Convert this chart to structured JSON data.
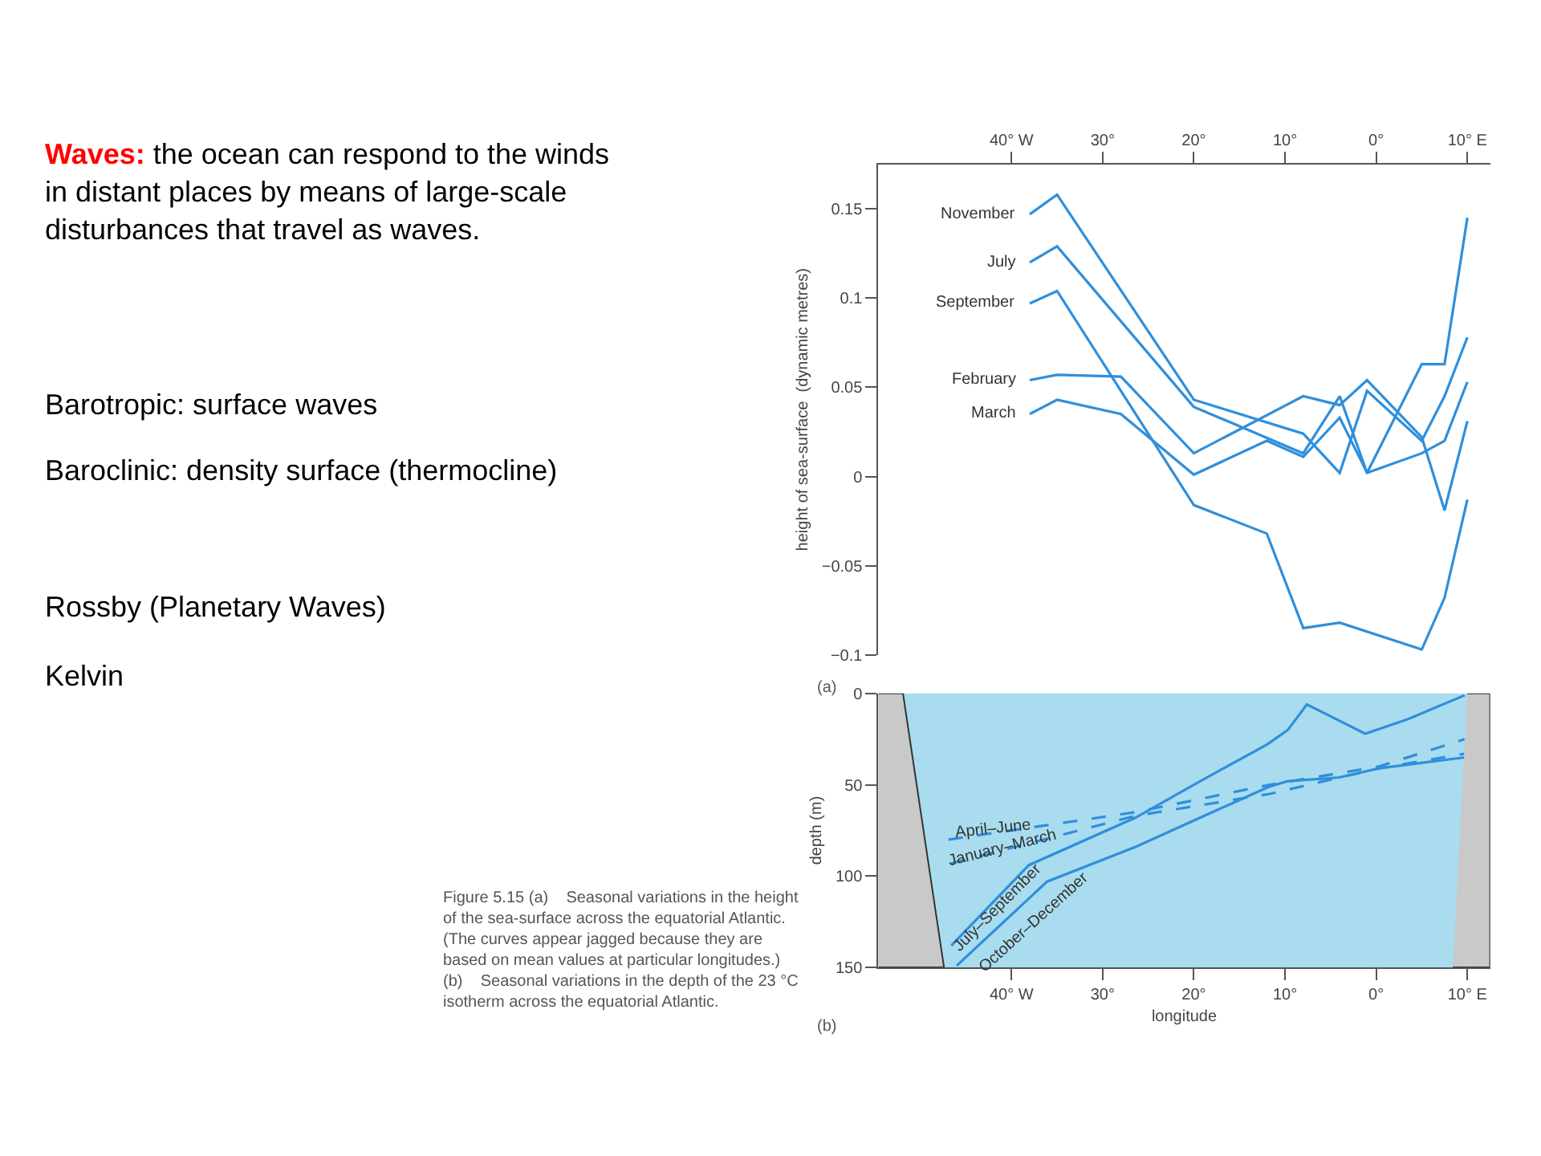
{
  "chart_data": [
    {
      "type": "line",
      "xlim": [
        -54.6,
        12.5
      ],
      "ylim": [
        -0.1,
        0.175
      ],
      "xticks": [
        {
          "value": -40,
          "label": "40° W"
        },
        {
          "value": -30,
          "label": "30°"
        },
        {
          "value": -20,
          "label": "20°"
        },
        {
          "value": -10,
          "label": "10°"
        },
        {
          "value": 0,
          "label": "0°"
        },
        {
          "value": 10,
          "label": "10° E"
        }
      ],
      "yticks": [
        {
          "value": -0.1,
          "label": "−0.1"
        },
        {
          "value": -0.05,
          "label": "−0.05"
        },
        0,
        0.05,
        0.1,
        0.15
      ],
      "ylabel": "height of sea-surface  (dynamic metres)",
      "grid": false,
      "legend": false,
      "line_style": "solid",
      "marker": "none",
      "series": [
        {
          "name": "November",
          "color": "#2f8fdc",
          "x": [
            -38,
            -35,
            -20,
            -8,
            -4,
            -1,
            5,
            7.5,
            10
          ],
          "values": [
            0.147,
            0.158,
            0.043,
            0.024,
            0.002,
            0.048,
            0.02,
            0.045,
            0.078
          ]
        },
        {
          "name": "July",
          "color": "#2f8fdc",
          "x": [
            -38,
            -35,
            -20,
            -8,
            -4,
            -1,
            5,
            7.5,
            10
          ],
          "values": [
            0.12,
            0.129,
            0.039,
            0.013,
            0.045,
            0.002,
            0.063,
            0.063,
            0.145
          ]
        },
        {
          "name": "September",
          "color": "#2f8fdc",
          "x": [
            -38,
            -35,
            -20,
            -12,
            -8,
            -4,
            5,
            7.5,
            10
          ],
          "values": [
            0.097,
            0.104,
            -0.016,
            -0.032,
            -0.085,
            -0.082,
            -0.097,
            -0.068,
            -0.013
          ]
        },
        {
          "name": "February",
          "color": "#2f8fdc",
          "x": [
            -38,
            -35,
            -28,
            -20,
            -8,
            -4,
            -1,
            5,
            7.5,
            10
          ],
          "values": [
            0.054,
            0.057,
            0.056,
            0.013,
            0.045,
            0.04,
            0.054,
            0.022,
            -0.019,
            0.031
          ]
        },
        {
          "name": "March",
          "color": "#2f8fdc",
          "x": [
            -38,
            -35,
            -28,
            -20,
            -12,
            -8,
            -4,
            -1,
            5,
            7.5,
            10
          ],
          "values": [
            0.035,
            0.043,
            0.035,
            0.001,
            0.02,
            0.011,
            0.033,
            0.002,
            0.013,
            0.02,
            0.053
          ]
        }
      ],
      "annotations": [
        "Waves: the ocean can respond to the winds\nin distant places by means of large-scale\ndisturbances that travel as waves.",
        "Barotropic: surface waves",
        "Baroclinic: density surface (thermocline)",
        "Rossby (Planetary Waves)",
        "Kelvin",
        "(a)"
      ]
    },
    {
      "type": "line",
      "xlim": [
        -54.6,
        12.5
      ],
      "ylim": [
        150,
        0
      ],
      "xticks": [
        {
          "value": -40,
          "label": "40° W"
        },
        {
          "value": -30,
          "label": "30°"
        },
        {
          "value": -20,
          "label": "20°"
        },
        {
          "value": -10,
          "label": "10°"
        },
        {
          "value": 0,
          "label": "0°"
        },
        {
          "value": 10,
          "label": "10° E"
        }
      ],
      "yticks": [
        0,
        50,
        100,
        150
      ],
      "xlabel": "longitude",
      "ylabel": "depth (m)",
      "grid": false,
      "legend": false,
      "marker": "none",
      "series": [
        {
          "name": "April–June",
          "color": "#2f8fdc",
          "line_style": "dashed",
          "x": [
            -46.9,
            -26.4,
            -11.7,
            0.3,
            9.7
          ],
          "values": [
            80,
            65,
            50,
            40,
            25
          ]
        },
        {
          "name": "January–March",
          "color": "#2f8fdc",
          "line_style": "dashed",
          "x": [
            -46.6,
            -26.4,
            -11.7,
            0.3,
            9.7
          ],
          "values": [
            93,
            67,
            55,
            41,
            33
          ]
        },
        {
          "name": "July–September",
          "color": "#2f8fdc",
          "line_style": "solid",
          "x": [
            -46.6,
            -38.1,
            -26.4,
            -19.3,
            -12,
            -9.7,
            -7.6,
            -5.6,
            -1.2,
            3.5,
            9.7
          ],
          "values": [
            138,
            94,
            68,
            48,
            28,
            20,
            6,
            11,
            22,
            14,
            1
          ]
        },
        {
          "name": "October–December",
          "color": "#2f8fdc",
          "line_style": "solid",
          "x": [
            -46,
            -36.1,
            -26.4,
            -19.3,
            -11.7,
            -9.7,
            -4.1,
            0.3,
            9.7
          ],
          "values": [
            149,
            103,
            84,
            68,
            51,
            48,
            46,
            41,
            35
          ]
        },
        {
          "type": "area",
          "color": "#c9c9c9",
          "x": [
            -54.6,
            -51.9,
            -47.4,
            -54.6
          ],
          "values": [
            0,
            0,
            150,
            150
          ]
        },
        {
          "type": "area",
          "color": "#c9c9c9",
          "x": [
            10,
            12.5,
            12.5,
            8.4
          ],
          "values": [
            0,
            0,
            150,
            150
          ]
        }
      ],
      "annotations": [
        "(b)",
        "Figure 5.15 (a)    Seasonal variations in the height\nof the sea-surface across the equatorial Atlantic.\n(The curves appear jagged because they are\nbased on mean values at particular longitudes.)\n(b)    Seasonal variations in the depth of the 23 °C\nisotherm across the equatorial Atlantic."
      ]
    }
  ]
}
